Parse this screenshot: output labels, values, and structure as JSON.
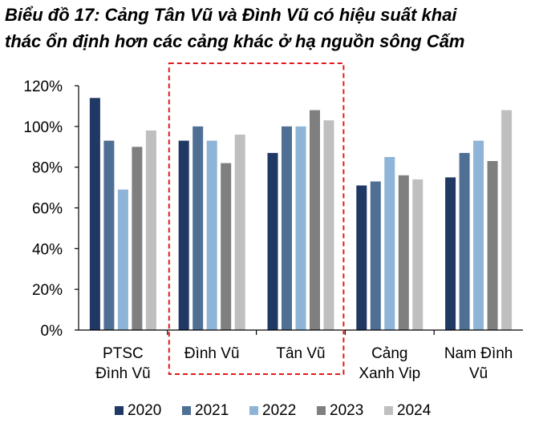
{
  "title_line1": "Biểu đồ 17: Cảng Tân Vũ và Đình Vũ có hiệu suất khai",
  "title_line2": "thác ổn định hơn các cảng khác ở hạ nguồn sông Cấm",
  "colors": {
    "2020": "#1f3864",
    "2021": "#4f6f95",
    "2022": "#8eb4d8",
    "2023": "#7f7f7f",
    "2024": "#bfbfbf",
    "highlight_box": "#e0191b"
  },
  "chart_data": {
    "type": "bar",
    "title": "Biểu đồ 17: Cảng Tân Vũ và Đình Vũ có hiệu suất khai thác ổn định hơn các cảng khác ở hạ nguồn sông Cấm",
    "categories": [
      [
        "PTSC",
        "Đình Vũ"
      ],
      [
        "Đình Vũ"
      ],
      [
        "Tân Vũ"
      ],
      [
        "Cảng",
        "Xanh Vip"
      ],
      [
        "Nam Đình",
        "Vũ"
      ]
    ],
    "series": [
      {
        "name": "2020",
        "values": [
          114,
          93,
          87,
          71,
          75
        ]
      },
      {
        "name": "2021",
        "values": [
          93,
          100,
          100,
          73,
          87
        ]
      },
      {
        "name": "2022",
        "values": [
          69,
          93,
          100,
          85,
          93
        ]
      },
      {
        "name": "2023",
        "values": [
          90,
          82,
          108,
          76,
          83
        ]
      },
      {
        "name": "2024",
        "values": [
          98,
          96,
          103,
          74,
          108
        ]
      }
    ],
    "yticks": [
      "0%",
      "20%",
      "40%",
      "60%",
      "80%",
      "100%",
      "120%"
    ],
    "ylim": [
      0,
      120
    ],
    "highlighted_categories": [
      1,
      2
    ],
    "grid": false,
    "legend": "bottom"
  }
}
